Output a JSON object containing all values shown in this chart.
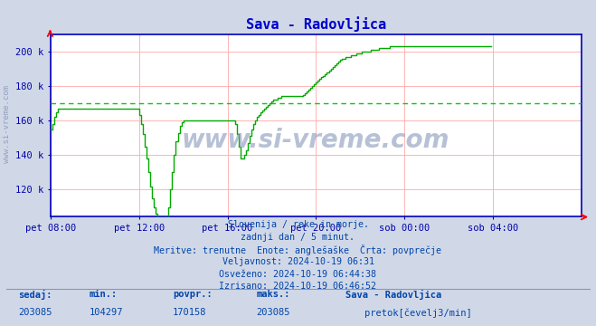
{
  "title": "Sava - Radovljica",
  "title_color": "#0000cc",
  "bg_color": "#d0d8e8",
  "plot_bg_color": "#ffffff",
  "grid_color": "#ffaaaa",
  "line_color": "#00aa00",
  "avg_line_color": "#00cc00",
  "avg_value": 170158,
  "y_min": 104297,
  "y_max": 210000,
  "y_ticks": [
    120000,
    140000,
    160000,
    180000,
    200000
  ],
  "y_tick_labels": [
    "120 k",
    "140 k",
    "160 k",
    "180 k",
    "200 k"
  ],
  "x_tick_labels": [
    "pet 08:00",
    "pet 12:00",
    "pet 16:00",
    "pet 20:00",
    "sob 00:00",
    "sob 04:00"
  ],
  "x_tick_positions": [
    0,
    48,
    96,
    144,
    192,
    240
  ],
  "total_points": 288,
  "axis_color": "#0000bb",
  "tick_color": "#0000aa",
  "info_lines": [
    "Slovenija / reke in morje.",
    "zadnji dan / 5 minut.",
    "Meritve: trenutne  Enote: anglešaške  Črta: povprečje",
    "Veljavnost: 2024-10-19 06:31",
    "Osveženo: 2024-10-19 06:44:38",
    "Izrisano: 2024-10-19 06:46:52"
  ],
  "footer_labels": [
    "sedaj:",
    "min.:",
    "povpr.:",
    "maks.:"
  ],
  "footer_values": [
    "203085",
    "104297",
    "170158",
    "203085"
  ],
  "footer_station": "Sava - Radovljica",
  "footer_legend": "pretok[čevelj3/min]",
  "watermark": "www.si-vreme.com",
  "flow_data": [
    155000,
    158000,
    162000,
    165000,
    167000,
    167000,
    167000,
    167000,
    167000,
    167000,
    167000,
    167000,
    167000,
    167000,
    167000,
    167000,
    167000,
    167000,
    167000,
    167000,
    167000,
    167000,
    167000,
    167000,
    167000,
    167000,
    167000,
    167000,
    167000,
    167000,
    167000,
    167000,
    167000,
    167000,
    167000,
    167000,
    167000,
    167000,
    167000,
    167000,
    167000,
    167000,
    167000,
    167000,
    167000,
    167000,
    167000,
    167000,
    163000,
    158000,
    152000,
    145000,
    138000,
    130000,
    122000,
    115000,
    110000,
    106000,
    104297,
    104297,
    104297,
    104297,
    104297,
    104297,
    110000,
    120000,
    130000,
    140000,
    148000,
    153000,
    157000,
    159000,
    160000,
    160000,
    160000,
    160000,
    160000,
    160000,
    160000,
    160000,
    160000,
    160000,
    160000,
    160000,
    160000,
    160000,
    160000,
    160000,
    160000,
    160000,
    160000,
    160000,
    160000,
    160000,
    160000,
    160000,
    160000,
    160000,
    160000,
    160000,
    158000,
    152000,
    145000,
    138000,
    138000,
    140000,
    143000,
    147000,
    151000,
    155000,
    158000,
    160000,
    162000,
    163000,
    165000,
    166000,
    167000,
    168000,
    169000,
    170000,
    171000,
    172000,
    172000,
    173000,
    173000,
    174000,
    174000,
    174000,
    174000,
    174000,
    174000,
    174000,
    174000,
    174000,
    174000,
    174000,
    174000,
    175000,
    176000,
    177000,
    178000,
    179000,
    180000,
    181000,
    182000,
    183000,
    184000,
    185000,
    186000,
    187000,
    188000,
    189000,
    190000,
    191000,
    192000,
    193000,
    194000,
    195000,
    196000,
    196000,
    197000,
    197000,
    197000,
    198000,
    198000,
    198000,
    199000,
    199000,
    199000,
    200000,
    200000,
    200000,
    200000,
    200000,
    201000,
    201000,
    201000,
    201000,
    202000,
    202000,
    202000,
    202000,
    202000,
    202000,
    203000,
    203000,
    203000,
    203000,
    203000,
    203000,
    203000,
    203000,
    203000,
    203000,
    203000,
    203000,
    203000,
    203000,
    203000,
    203000,
    203000,
    203000,
    203000,
    203000,
    203000,
    203000,
    203000,
    203000,
    203000,
    203000,
    203000,
    203000,
    203000,
    203085,
    203085,
    203085,
    203085,
    203085,
    203085,
    203085,
    203085,
    203085,
    203085,
    203085,
    203085,
    203085,
    203085,
    203085,
    203085,
    203085,
    203085,
    203085,
    203085,
    203085,
    203085,
    203085,
    203085,
    203085,
    203085,
    203085
  ]
}
